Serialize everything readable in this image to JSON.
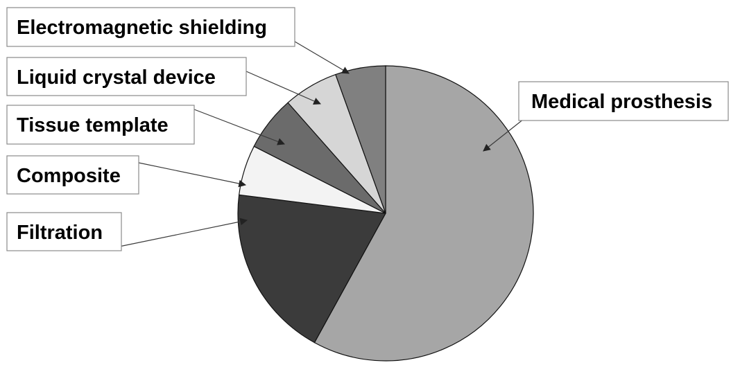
{
  "chart_data": {
    "type": "pie",
    "title": "",
    "start_angle_deg": 0,
    "direction": "clockwise",
    "slices": [
      {
        "label": "Medical prosthesis",
        "value": 58.0,
        "color": "#a6a6a6"
      },
      {
        "label": "Filtration",
        "value": 19.0,
        "color": "#3b3b3b"
      },
      {
        "label": "Composite",
        "value": 5.5,
        "color": "#f3f3f3"
      },
      {
        "label": "Tissue template",
        "value": 6.0,
        "color": "#6b6b6b"
      },
      {
        "label": "Liquid crystal device",
        "value": 6.0,
        "color": "#d6d6d6"
      },
      {
        "label": "Electromagnetic shielding",
        "value": 5.5,
        "color": "#808080"
      }
    ]
  }
}
